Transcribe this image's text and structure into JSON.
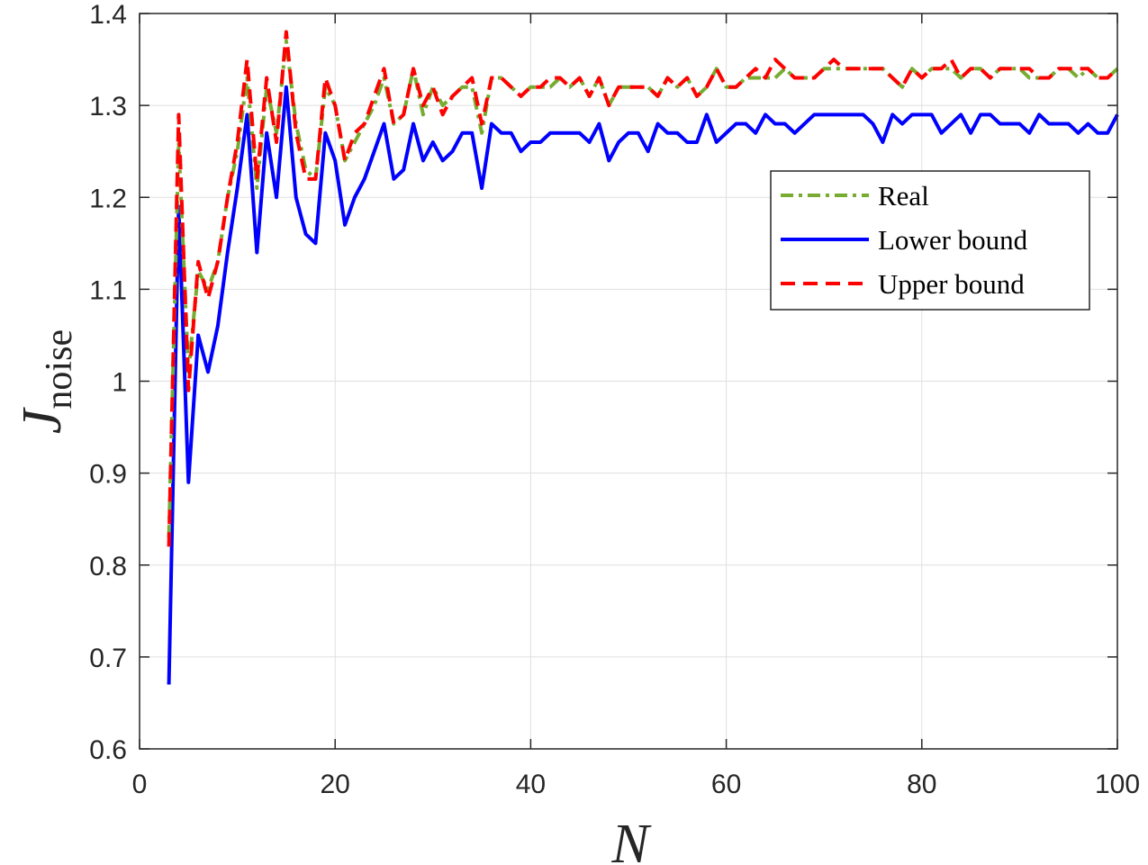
{
  "chart_data": {
    "type": "line",
    "xlabel": "N",
    "ylabel": "J",
    "ylabel_subscript": "noise",
    "xlim": [
      0,
      100
    ],
    "ylim": [
      0.6,
      1.4
    ],
    "xticks": [
      0,
      20,
      40,
      60,
      80,
      100
    ],
    "xtick_labels": [
      "0",
      "20",
      "40",
      "60",
      "80",
      "100"
    ],
    "yticks": [
      0.6,
      0.7,
      0.8,
      0.9,
      1.0,
      1.1,
      1.2,
      1.3,
      1.4
    ],
    "ytick_labels": [
      "0.6",
      "0.7",
      "0.8",
      "0.9",
      "1",
      "1.1",
      "1.2",
      "1.3",
      "1.4"
    ],
    "grid": true,
    "legend_position": "right",
    "x": [
      3,
      4,
      5,
      6,
      7,
      8,
      9,
      10,
      11,
      12,
      13,
      14,
      15,
      16,
      17,
      18,
      19,
      20,
      21,
      22,
      23,
      24,
      25,
      26,
      27,
      28,
      29,
      30,
      31,
      32,
      33,
      34,
      35,
      36,
      37,
      38,
      39,
      40,
      41,
      42,
      43,
      44,
      45,
      46,
      47,
      48,
      49,
      50,
      51,
      52,
      53,
      54,
      55,
      56,
      57,
      58,
      59,
      60,
      61,
      62,
      63,
      64,
      65,
      66,
      67,
      68,
      69,
      70,
      71,
      72,
      73,
      74,
      75,
      76,
      77,
      78,
      79,
      80,
      81,
      82,
      83,
      84,
      85,
      86,
      87,
      88,
      89,
      90,
      91,
      92,
      93,
      94,
      95,
      96,
      97,
      98,
      99,
      100
    ],
    "series": [
      {
        "name": "Real",
        "color": "#77AC30",
        "dash": "dashdot",
        "values": [
          0.83,
          1.26,
          1.01,
          1.12,
          1.1,
          1.13,
          1.2,
          1.25,
          1.33,
          1.21,
          1.32,
          1.27,
          1.37,
          1.28,
          1.23,
          1.22,
          1.32,
          1.3,
          1.24,
          1.26,
          1.28,
          1.3,
          1.33,
          1.28,
          1.29,
          1.34,
          1.29,
          1.32,
          1.3,
          1.31,
          1.32,
          1.32,
          1.27,
          1.33,
          1.33,
          1.32,
          1.31,
          1.32,
          1.32,
          1.32,
          1.33,
          1.32,
          1.33,
          1.31,
          1.33,
          1.3,
          1.32,
          1.32,
          1.32,
          1.32,
          1.31,
          1.33,
          1.32,
          1.33,
          1.31,
          1.32,
          1.34,
          1.32,
          1.32,
          1.33,
          1.33,
          1.33,
          1.33,
          1.34,
          1.33,
          1.33,
          1.33,
          1.34,
          1.34,
          1.34,
          1.34,
          1.34,
          1.34,
          1.34,
          1.33,
          1.32,
          1.34,
          1.33,
          1.34,
          1.34,
          1.34,
          1.33,
          1.34,
          1.34,
          1.33,
          1.34,
          1.34,
          1.34,
          1.33,
          1.33,
          1.33,
          1.34,
          1.34,
          1.33,
          1.34,
          1.33,
          1.33,
          1.34
        ]
      },
      {
        "name": "Lower bound",
        "color": "#0000FF",
        "dash": "solid",
        "values": [
          0.67,
          1.19,
          0.89,
          1.05,
          1.01,
          1.06,
          1.14,
          1.21,
          1.29,
          1.14,
          1.27,
          1.2,
          1.32,
          1.2,
          1.16,
          1.15,
          1.27,
          1.24,
          1.17,
          1.2,
          1.22,
          1.25,
          1.28,
          1.22,
          1.23,
          1.28,
          1.24,
          1.26,
          1.24,
          1.25,
          1.27,
          1.27,
          1.21,
          1.28,
          1.27,
          1.27,
          1.25,
          1.26,
          1.26,
          1.27,
          1.27,
          1.27,
          1.27,
          1.26,
          1.28,
          1.24,
          1.26,
          1.27,
          1.27,
          1.25,
          1.28,
          1.27,
          1.27,
          1.26,
          1.26,
          1.29,
          1.26,
          1.27,
          1.28,
          1.28,
          1.27,
          1.29,
          1.28,
          1.28,
          1.27,
          1.28,
          1.29,
          1.29,
          1.29,
          1.29,
          1.29,
          1.29,
          1.28,
          1.26,
          1.29,
          1.28,
          1.29,
          1.29,
          1.29,
          1.27,
          1.28,
          1.29,
          1.27,
          1.29,
          1.29,
          1.28,
          1.28,
          1.28,
          1.27,
          1.29,
          1.28,
          1.28,
          1.28,
          1.27,
          1.28,
          1.27,
          1.27,
          1.29
        ]
      },
      {
        "name": "Upper bound",
        "color": "#FF0000",
        "dash": "dashed",
        "values": [
          0.82,
          1.29,
          0.99,
          1.13,
          1.09,
          1.13,
          1.2,
          1.26,
          1.35,
          1.22,
          1.33,
          1.26,
          1.38,
          1.27,
          1.22,
          1.22,
          1.33,
          1.3,
          1.24,
          1.27,
          1.28,
          1.31,
          1.34,
          1.28,
          1.29,
          1.34,
          1.3,
          1.32,
          1.29,
          1.31,
          1.32,
          1.33,
          1.28,
          1.33,
          1.33,
          1.32,
          1.31,
          1.32,
          1.32,
          1.33,
          1.33,
          1.32,
          1.33,
          1.31,
          1.33,
          1.3,
          1.32,
          1.32,
          1.32,
          1.32,
          1.31,
          1.33,
          1.32,
          1.33,
          1.31,
          1.32,
          1.34,
          1.32,
          1.32,
          1.33,
          1.34,
          1.33,
          1.35,
          1.34,
          1.33,
          1.33,
          1.33,
          1.34,
          1.35,
          1.34,
          1.34,
          1.34,
          1.34,
          1.34,
          1.33,
          1.32,
          1.34,
          1.33,
          1.34,
          1.34,
          1.35,
          1.33,
          1.34,
          1.34,
          1.33,
          1.34,
          1.34,
          1.34,
          1.34,
          1.33,
          1.33,
          1.34,
          1.34,
          1.34,
          1.34,
          1.33,
          1.33,
          1.34
        ]
      }
    ]
  }
}
